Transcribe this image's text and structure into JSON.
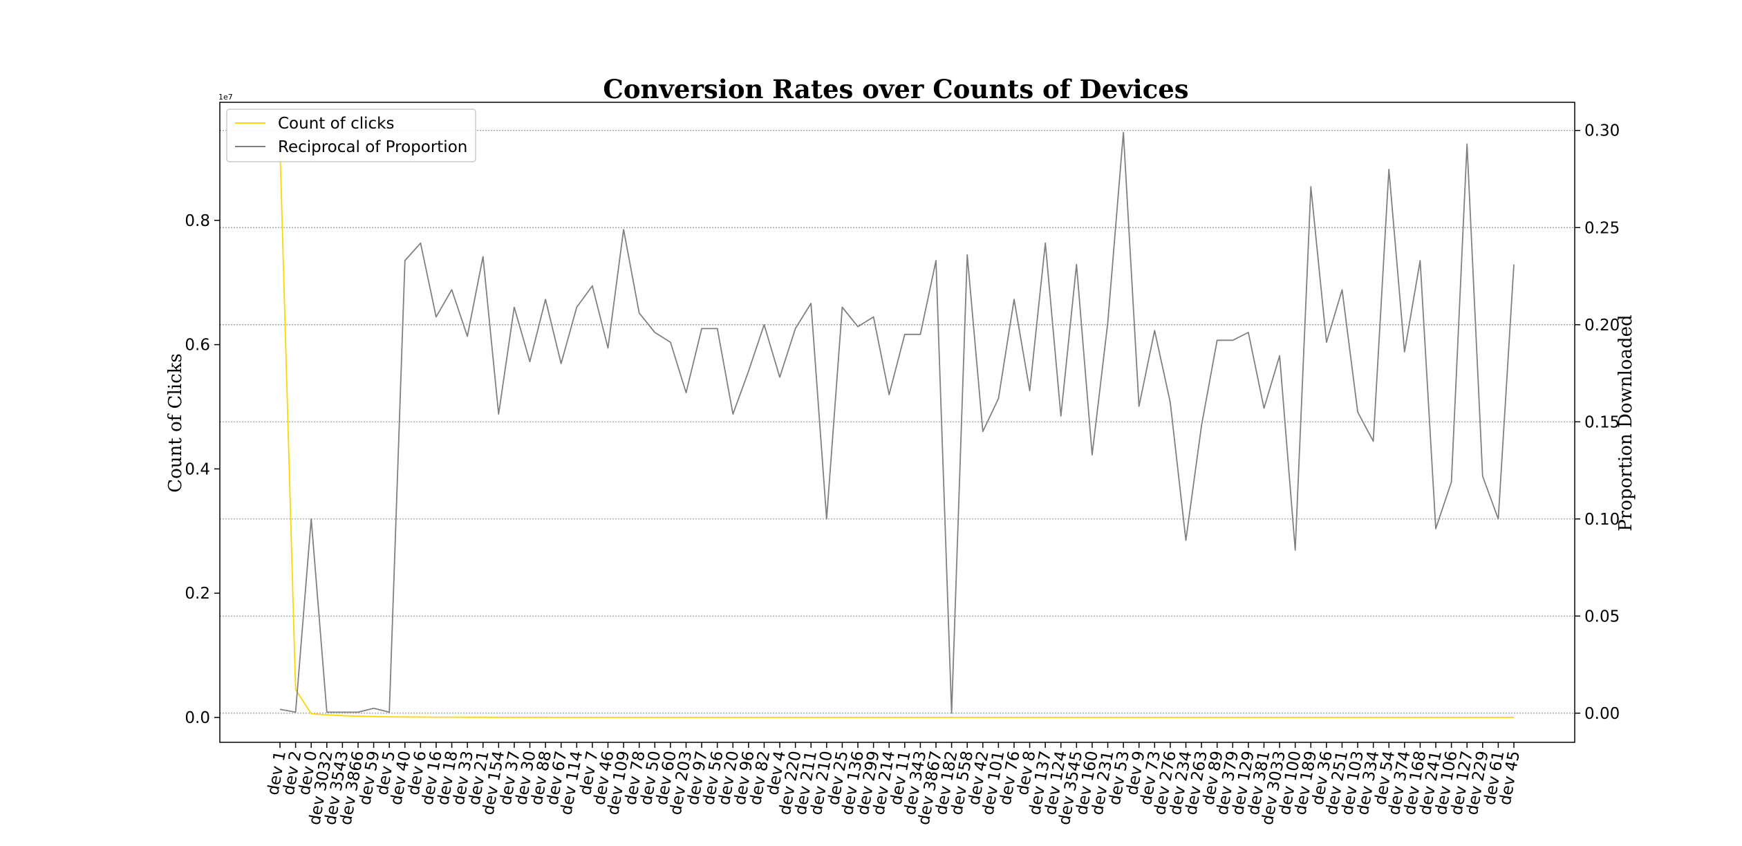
{
  "chart_data": {
    "type": "line",
    "title": "Conversion Rates over Counts of Devices",
    "ylabel_left": "Count of Clicks",
    "ylabel_right": "Proportion Downloaded",
    "left_axis": {
      "ylim": [
        -0.04,
        0.99
      ],
      "ticks": [
        0.0,
        0.2,
        0.4,
        0.6,
        0.8
      ],
      "tick_labels": [
        "0.0",
        "0.2",
        "0.4",
        "0.6",
        "0.8"
      ],
      "offset_text": "1e7"
    },
    "right_axis": {
      "ylim": [
        -0.015,
        0.3145
      ],
      "ticks": [
        0.0,
        0.05,
        0.1,
        0.15,
        0.2,
        0.25,
        0.3
      ],
      "tick_labels": [
        "0.00",
        "0.05",
        "0.10",
        "0.15",
        "0.20",
        "0.25",
        "0.30"
      ]
    },
    "grid": "horizontal dotted on right axis",
    "legend_position": "top-left",
    "categories": [
      "dev 1",
      "dev 2",
      "dev 0",
      "dev 3032",
      "dev 3543",
      "dev 3866",
      "dev 59",
      "dev 5",
      "dev 40",
      "dev 6",
      "dev 16",
      "dev 18",
      "dev 33",
      "dev 21",
      "dev 154",
      "dev 37",
      "dev 30",
      "dev 88",
      "dev 67",
      "dev 114",
      "dev 7",
      "dev 46",
      "dev 109",
      "dev 78",
      "dev 50",
      "dev 60",
      "dev 203",
      "dev 97",
      "dev 56",
      "dev 20",
      "dev 96",
      "dev 82",
      "dev 4",
      "dev 220",
      "dev 211",
      "dev 210",
      "dev 25",
      "dev 136",
      "dev 299",
      "dev 214",
      "dev 11",
      "dev 343",
      "dev 3867",
      "dev 182",
      "dev 558",
      "dev 42",
      "dev 101",
      "dev 76",
      "dev 8",
      "dev 137",
      "dev 124",
      "dev 3545",
      "dev 160",
      "dev 231",
      "dev 53",
      "dev 9",
      "dev 73",
      "dev 276",
      "dev 234",
      "dev 263",
      "dev 89",
      "dev 379",
      "dev 129",
      "dev 381",
      "dev 3033",
      "dev 100",
      "dev 189",
      "dev 36",
      "dev 251",
      "dev 103",
      "dev 334",
      "dev 54",
      "dev 374",
      "dev 168",
      "dev 241",
      "dev 106",
      "dev 127",
      "dev 229",
      "dev 61",
      "dev 45"
    ],
    "series": [
      {
        "name": "Count of clicks",
        "axis": "left",
        "color": "#ffd700",
        "values": [
          0.92,
          0.045,
          0.006,
          0.004,
          0.003,
          0.002,
          0.0015,
          0.001,
          0.0008,
          0.0006,
          0.0005,
          0.0005,
          0.0004,
          0.0004,
          0.0003,
          0.0003,
          0.0003,
          0.0003,
          0.0002,
          0.0002,
          0.0002,
          0.0002,
          0.0002,
          0.0002,
          0.0002,
          0.0001,
          0.0001,
          0.0001,
          0.0001,
          0.0001,
          0.0001,
          0.0001,
          0.0001,
          0.0001,
          0.0001,
          0.0001,
          0.0001,
          0.0001,
          0.0001,
          0.0001,
          0.0001,
          0.0001,
          0.0001,
          0.0001,
          0.0001,
          0.0001,
          0.0001,
          0.0001,
          0.0001,
          0.0001,
          0.0001,
          0.0001,
          0.0001,
          0.0001,
          0.0001,
          0.0001,
          0.0001,
          0.0001,
          0.0001,
          0.0001,
          0.0001,
          0.0001,
          0.0001,
          0.0001,
          0.0001,
          0.0001,
          0.0001,
          0.0001,
          0.0001,
          0.0001,
          0.0001,
          0.0001,
          0.0001,
          0.0001,
          0.0001,
          0.0001,
          0.0001,
          0.0001,
          0.0001,
          0.0001
        ]
      },
      {
        "name": "Reciprocal of Proportion",
        "axis": "right",
        "color": "#808080",
        "values": [
          0.002,
          0.0005,
          0.1,
          0.0005,
          0.0005,
          0.0005,
          0.0025,
          0.0005,
          0.233,
          0.242,
          0.204,
          0.218,
          0.194,
          0.235,
          0.154,
          0.209,
          0.181,
          0.213,
          0.18,
          0.209,
          0.22,
          0.188,
          0.249,
          0.206,
          0.196,
          0.191,
          0.165,
          0.198,
          0.198,
          0.154,
          0.176,
          0.2,
          0.173,
          0.198,
          0.211,
          0.1,
          0.209,
          0.199,
          0.204,
          0.164,
          0.195,
          0.195,
          0.233,
          0.0,
          0.236,
          0.145,
          0.162,
          0.213,
          0.166,
          0.242,
          0.153,
          0.231,
          0.133,
          0.201,
          0.299,
          0.158,
          0.197,
          0.16,
          0.089,
          0.148,
          0.192,
          0.192,
          0.196,
          0.157,
          0.184,
          0.084,
          0.271,
          0.191,
          0.218,
          0.155,
          0.14,
          0.28,
          0.186,
          0.233,
          0.095,
          0.119,
          0.293,
          0.122,
          0.1,
          0.231
        ]
      }
    ]
  }
}
